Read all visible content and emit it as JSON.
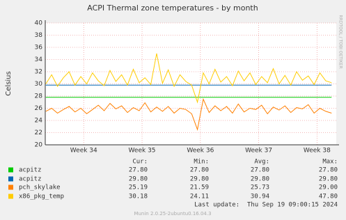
{
  "chart_data": {
    "type": "line",
    "title": "ACPI Thermal zone temperatures - by month",
    "y_label": "Celsius",
    "watermark": "RRDTOOL / TOBI OETIKER",
    "x": [
      33.35,
      33.45,
      33.55,
      33.65,
      33.75,
      33.85,
      33.95,
      34.05,
      34.15,
      34.25,
      34.35,
      34.45,
      34.55,
      34.65,
      34.75,
      34.85,
      34.95,
      35.05,
      35.15,
      35.25,
      35.35,
      35.45,
      35.55,
      35.65,
      35.75,
      35.85,
      35.95,
      36.05,
      36.15,
      36.25,
      36.35,
      36.45,
      36.55,
      36.65,
      36.75,
      36.85,
      36.95,
      37.05,
      37.15,
      37.25,
      37.35,
      37.45,
      37.55,
      37.65,
      37.75,
      37.85,
      37.95,
      38.05,
      38.15,
      38.25
    ],
    "xlim": [
      33.34,
      38.33
    ],
    "xticks": [
      {
        "value": 34,
        "label": "Week 34"
      },
      {
        "value": 35,
        "label": "Week 35"
      },
      {
        "value": 36,
        "label": "Week 36"
      },
      {
        "value": 37,
        "label": "Week 37"
      },
      {
        "value": 38,
        "label": "Week 38"
      }
    ],
    "ylim": [
      20,
      40
    ],
    "yticks": [
      20,
      22,
      24,
      26,
      28,
      30,
      32,
      34,
      36,
      38,
      40
    ],
    "grid": true,
    "series": [
      {
        "name": "acpitz",
        "color": "#00cc00",
        "values": [
          27.8,
          27.8,
          27.8,
          27.8,
          27.8,
          27.8,
          27.8,
          27.8,
          27.8,
          27.8,
          27.8,
          27.8,
          27.8,
          27.8,
          27.8,
          27.8,
          27.8,
          27.8,
          27.8,
          27.8,
          27.8,
          27.8,
          27.8,
          27.8,
          27.8,
          27.8,
          27.8,
          27.8,
          27.8,
          27.8,
          27.8,
          27.8,
          27.8,
          27.8,
          27.8,
          27.8,
          27.8,
          27.8,
          27.8,
          27.8,
          27.8,
          27.8,
          27.8,
          27.8,
          27.8,
          27.8,
          27.8,
          27.8,
          27.8,
          27.8
        ]
      },
      {
        "name": "acpitz",
        "color": "#0066b3",
        "values": [
          29.8,
          29.8,
          29.8,
          29.8,
          29.8,
          29.8,
          29.8,
          29.8,
          29.8,
          29.8,
          29.8,
          29.8,
          29.8,
          29.8,
          29.8,
          29.8,
          29.8,
          29.8,
          29.8,
          29.8,
          29.8,
          29.8,
          29.8,
          29.8,
          29.8,
          29.8,
          29.8,
          29.8,
          29.8,
          29.8,
          29.8,
          29.8,
          29.8,
          29.8,
          29.8,
          29.8,
          29.8,
          29.8,
          29.8,
          29.8,
          29.8,
          29.8,
          29.8,
          29.8,
          29.8,
          29.8,
          29.8,
          29.8,
          29.8,
          29.8
        ]
      },
      {
        "name": "pch_skylake",
        "color": "#ff8000",
        "values": [
          25.5,
          26,
          25.2,
          25.8,
          26.3,
          25.4,
          26,
          25.1,
          25.8,
          26.5,
          25.6,
          26.8,
          25.9,
          26.4,
          25.3,
          26.1,
          25.6,
          26.9,
          25.4,
          26.2,
          25.5,
          26.3,
          25.2,
          26,
          25.8,
          25.1,
          22.5,
          27.5,
          25.3,
          26.4,
          25.6,
          26.3,
          25.2,
          26.7,
          25.4,
          26,
          25.8,
          26.5,
          25.1,
          26.2,
          25.7,
          26.4,
          25.3,
          26.1,
          25.9,
          26.6,
          25.2,
          26,
          25.5,
          25.2
        ]
      },
      {
        "name": "x86_pkg_temp",
        "color": "#ffcc00",
        "values": [
          30,
          31.5,
          29.6,
          31,
          32,
          29.8,
          31.2,
          30,
          31.8,
          30.5,
          29.7,
          32.2,
          30.4,
          31.5,
          29.8,
          32.4,
          30.2,
          31,
          29.9,
          35,
          30.1,
          32.3,
          29.6,
          31.5,
          30.4,
          29.8,
          27,
          31.8,
          30,
          32.4,
          30.3,
          31.2,
          29.7,
          32.1,
          30.5,
          31.8,
          29.9,
          31.2,
          30.2,
          32.5,
          30,
          31.4,
          29.8,
          32,
          30.6,
          31.3,
          29.9,
          31.8,
          30.5,
          30.2
        ]
      }
    ]
  },
  "legend_table": {
    "headers": [
      "Cur:",
      "Min:",
      "Avg:",
      "Max:"
    ],
    "rows": [
      [
        "27.80",
        "27.80",
        "27.80",
        "27.80"
      ],
      [
        "29.80",
        "29.80",
        "29.80",
        "29.80"
      ],
      [
        "25.19",
        "21.59",
        "25.73",
        "29.00"
      ],
      [
        "30.18",
        "24.11",
        "30.94",
        "47.80"
      ]
    ]
  },
  "last_update": "Last update:  Thu Sep 19 09:00:15 2024",
  "footer": "Munin 2.0.25-2ubuntu0.16.04.3"
}
